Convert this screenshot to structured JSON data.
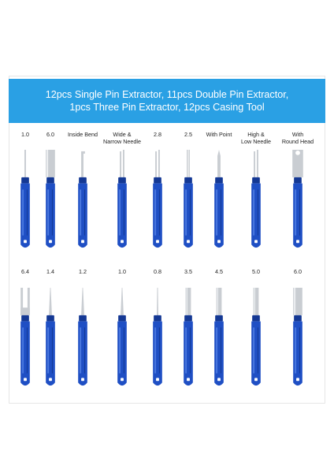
{
  "banner": {
    "line1": "12pcs Single Pin Extractor, 11pcs Double Pin Extractor,",
    "line2": "1pcs Three Pin Extractor, 12pcs Casing Tool"
  },
  "row1": [
    {
      "label1": "1.0",
      "label2": "",
      "tip": "needle-thin"
    },
    {
      "label1": "6.0",
      "label2": "",
      "tip": "tube-wide"
    },
    {
      "label1": "Inside Bend",
      "label2": "",
      "tip": "bend"
    },
    {
      "label1": "Wide &",
      "label2": "Narrow Needle",
      "tip": "double"
    },
    {
      "label1": "2.8",
      "label2": "",
      "tip": "double"
    },
    {
      "label1": "2.5",
      "label2": "",
      "tip": "double-narrow"
    },
    {
      "label1": "With Point",
      "label2": "",
      "tip": "point"
    },
    {
      "label1": "High &",
      "label2": "Low Needle",
      "tip": "double"
    },
    {
      "label1": "With",
      "label2": "Round Head",
      "tip": "tube-round"
    }
  ],
  "row2": [
    {
      "label1": "6.4",
      "tip": "fork-wide"
    },
    {
      "label1": "1.4",
      "tip": "needle-cone"
    },
    {
      "label1": "1.2",
      "tip": "needle-cone"
    },
    {
      "label1": "1.0",
      "tip": "needle-cone"
    },
    {
      "label1": "0.8",
      "tip": "needle-fine"
    },
    {
      "label1": "3.5",
      "tip": "tube"
    },
    {
      "label1": "4.5",
      "tip": "tube"
    },
    {
      "label1": "5.0",
      "tip": "tube"
    },
    {
      "label1": "6.0",
      "tip": "tube-wide"
    }
  ],
  "colors": {
    "handle": "#1f4fc4",
    "handle_dark": "#143894",
    "metal": "#c9cdd2",
    "banner": "#2aa0e4"
  }
}
